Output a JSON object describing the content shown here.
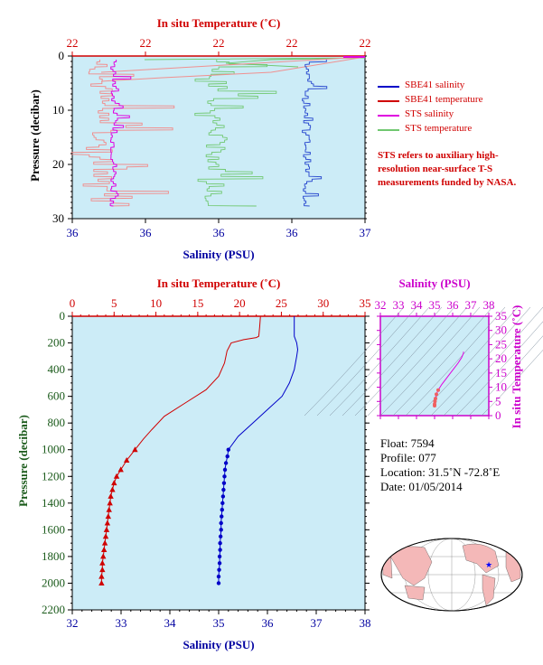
{
  "chart_data": [
    {
      "type": "line",
      "title": "",
      "top_axis_label": "In situ Temperature (˚C)",
      "top_ticks": [
        "22",
        "22",
        "22",
        "22",
        "22"
      ],
      "bottom_axis_label": "Salinity (PSU)",
      "bottom_ticks": [
        "36",
        "36",
        "36",
        "36",
        "37"
      ],
      "ylabel": "Pressure (decibar)",
      "y_ticks": [
        "0",
        "10",
        "20",
        "30"
      ],
      "ylim": [
        30,
        0
      ],
      "legend": [
        {
          "name": "SBE41 salinity",
          "color": "#0000c8"
        },
        {
          "name": "SBE41 temperature",
          "color": "#d00000"
        },
        {
          "name": "STS salinity",
          "color": "#e000e0"
        },
        {
          "name": "STS temperature",
          "color": "#70c870"
        }
      ],
      "note": "STS refers to auxiliary high-resolution near-surface T-S measurements funded by NASA."
    },
    {
      "type": "line",
      "top_axis_label": "In situ Temperature (˚C)",
      "top_ticks": [
        "0",
        "5",
        "10",
        "15",
        "20",
        "25",
        "30",
        "35"
      ],
      "xlim_temperature": [
        0,
        35
      ],
      "bottom_axis_label": "Salinity (PSU)",
      "bottom_ticks": [
        "32",
        "33",
        "34",
        "35",
        "36",
        "37",
        "38"
      ],
      "xlim_salinity": [
        32,
        38
      ],
      "ylabel": "Pressure (decibar)",
      "y_ticks": [
        "0",
        "200",
        "400",
        "600",
        "800",
        "1000",
        "1200",
        "1400",
        "1600",
        "1800",
        "2000",
        "2200"
      ],
      "ylim": [
        2200,
        0
      ],
      "series": [
        {
          "quantity": "temperature",
          "color": "#d00000",
          "marker": "triangle",
          "points": [
            [
              22.5,
              0
            ],
            [
              22.4,
              80
            ],
            [
              22.3,
              150
            ],
            [
              22.0,
              160
            ],
            [
              20.5,
              175
            ],
            [
              19.0,
              200
            ],
            [
              18.5,
              260
            ],
            [
              18.2,
              350
            ],
            [
              17.5,
              450
            ],
            [
              16.0,
              550
            ],
            [
              13.5,
              650
            ],
            [
              11.0,
              750
            ],
            [
              9.5,
              850
            ],
            [
              8.5,
              920
            ],
            [
              7.5,
              1000
            ],
            [
              6.5,
              1080
            ],
            [
              5.8,
              1150
            ],
            [
              5.3,
              1200
            ],
            [
              5.0,
              1250
            ],
            [
              4.8,
              1300
            ],
            [
              4.6,
              1350
            ],
            [
              4.5,
              1400
            ],
            [
              4.4,
              1450
            ],
            [
              4.3,
              1500
            ],
            [
              4.2,
              1550
            ],
            [
              4.1,
              1600
            ],
            [
              4.0,
              1650
            ],
            [
              3.9,
              1700
            ],
            [
              3.8,
              1750
            ],
            [
              3.7,
              1800
            ],
            [
              3.6,
              1850
            ],
            [
              3.6,
              1900
            ],
            [
              3.5,
              1950
            ],
            [
              3.5,
              2000
            ]
          ],
          "marked_from": 1000
        },
        {
          "quantity": "salinity",
          "color": "#0000c8",
          "marker": "circle",
          "points": [
            [
              36.55,
              0
            ],
            [
              36.55,
              50
            ],
            [
              36.55,
              100
            ],
            [
              36.55,
              150
            ],
            [
              36.6,
              200
            ],
            [
              36.62,
              250
            ],
            [
              36.6,
              300
            ],
            [
              36.55,
              400
            ],
            [
              36.45,
              500
            ],
            [
              36.3,
              600
            ],
            [
              36.0,
              700
            ],
            [
              35.7,
              800
            ],
            [
              35.4,
              900
            ],
            [
              35.2,
              1000
            ],
            [
              35.18,
              1050
            ],
            [
              35.15,
              1100
            ],
            [
              35.13,
              1150
            ],
            [
              35.12,
              1200
            ],
            [
              35.11,
              1250
            ],
            [
              35.1,
              1300
            ],
            [
              35.09,
              1350
            ],
            [
              35.08,
              1400
            ],
            [
              35.07,
              1450
            ],
            [
              35.06,
              1500
            ],
            [
              35.05,
              1550
            ],
            [
              35.05,
              1600
            ],
            [
              35.04,
              1650
            ],
            [
              35.03,
              1700
            ],
            [
              35.03,
              1750
            ],
            [
              35.02,
              1800
            ],
            [
              35.02,
              1850
            ],
            [
              35.01,
              1900
            ],
            [
              35.0,
              1950
            ],
            [
              35.0,
              2000
            ]
          ],
          "marked_from": 1000
        }
      ]
    },
    {
      "type": "scatter",
      "top_axis_label": "Salinity (PSU)",
      "top_ticks": [
        "32",
        "33",
        "34",
        "35",
        "36",
        "37",
        "38"
      ],
      "xlim": [
        32,
        38
      ],
      "right_axis_label": "In situ Temperature (˚C)",
      "right_ticks": [
        "0",
        "5",
        "10",
        "15",
        "20",
        "25",
        "30",
        "35"
      ],
      "ylim": [
        0,
        35
      ],
      "points": [
        [
          36.6,
          22.5
        ],
        [
          36.6,
          22.0
        ],
        [
          36.5,
          20.5
        ],
        [
          36.3,
          18.5
        ],
        [
          36.0,
          16.0
        ],
        [
          35.7,
          13.5
        ],
        [
          35.4,
          11.0
        ],
        [
          35.2,
          9.0
        ],
        [
          35.1,
          7.5
        ],
        [
          35.05,
          6.0
        ],
        [
          35.02,
          5.0
        ],
        [
          35.0,
          4.0
        ],
        [
          35.0,
          3.5
        ]
      ]
    }
  ],
  "info": {
    "float": "Float: 7594",
    "profile": "Profile: 077",
    "location": "Location: 31.5˚N -72.8˚E",
    "date": "Date: 01/05/2014"
  }
}
